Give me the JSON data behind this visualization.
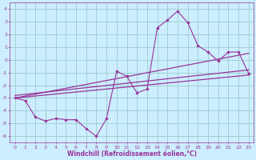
{
  "xlabel": "Windchill (Refroidissement éolien,°C)",
  "xlim": [
    -0.5,
    23.5
  ],
  "ylim": [
    -6.5,
    4.5
  ],
  "yticks": [
    4,
    3,
    2,
    1,
    0,
    -1,
    -2,
    -3,
    -4,
    -5,
    -6
  ],
  "xticks": [
    0,
    1,
    2,
    3,
    4,
    5,
    6,
    7,
    8,
    9,
    10,
    11,
    12,
    13,
    14,
    15,
    16,
    17,
    18,
    19,
    20,
    21,
    22,
    23
  ],
  "bg_color": "#cceeff",
  "line_color": "#993399",
  "grid_color": "#99cccc",
  "line1_x": [
    0,
    1,
    2,
    3,
    4,
    5,
    6,
    7,
    8,
    9,
    10,
    11,
    12,
    13,
    14,
    15,
    16,
    17,
    18,
    19,
    20,
    21,
    22,
    23
  ],
  "line1_y": [
    -3.0,
    -3.2,
    -4.5,
    -4.8,
    -4.6,
    -4.7,
    -4.7,
    -5.4,
    -6.0,
    -4.6,
    -0.9,
    -1.3,
    -2.6,
    -2.3,
    2.5,
    3.1,
    3.8,
    2.9,
    1.1,
    0.6,
    -0.1,
    0.6,
    0.6,
    -1.1
  ],
  "line2_x": [
    0,
    23
  ],
  "line2_y": [
    -3.0,
    0.5
  ],
  "line3_x": [
    0,
    23
  ],
  "line3_y": [
    -2.8,
    -0.8
  ],
  "line4_x": [
    0,
    23
  ],
  "line4_y": [
    -3.0,
    -1.2
  ]
}
